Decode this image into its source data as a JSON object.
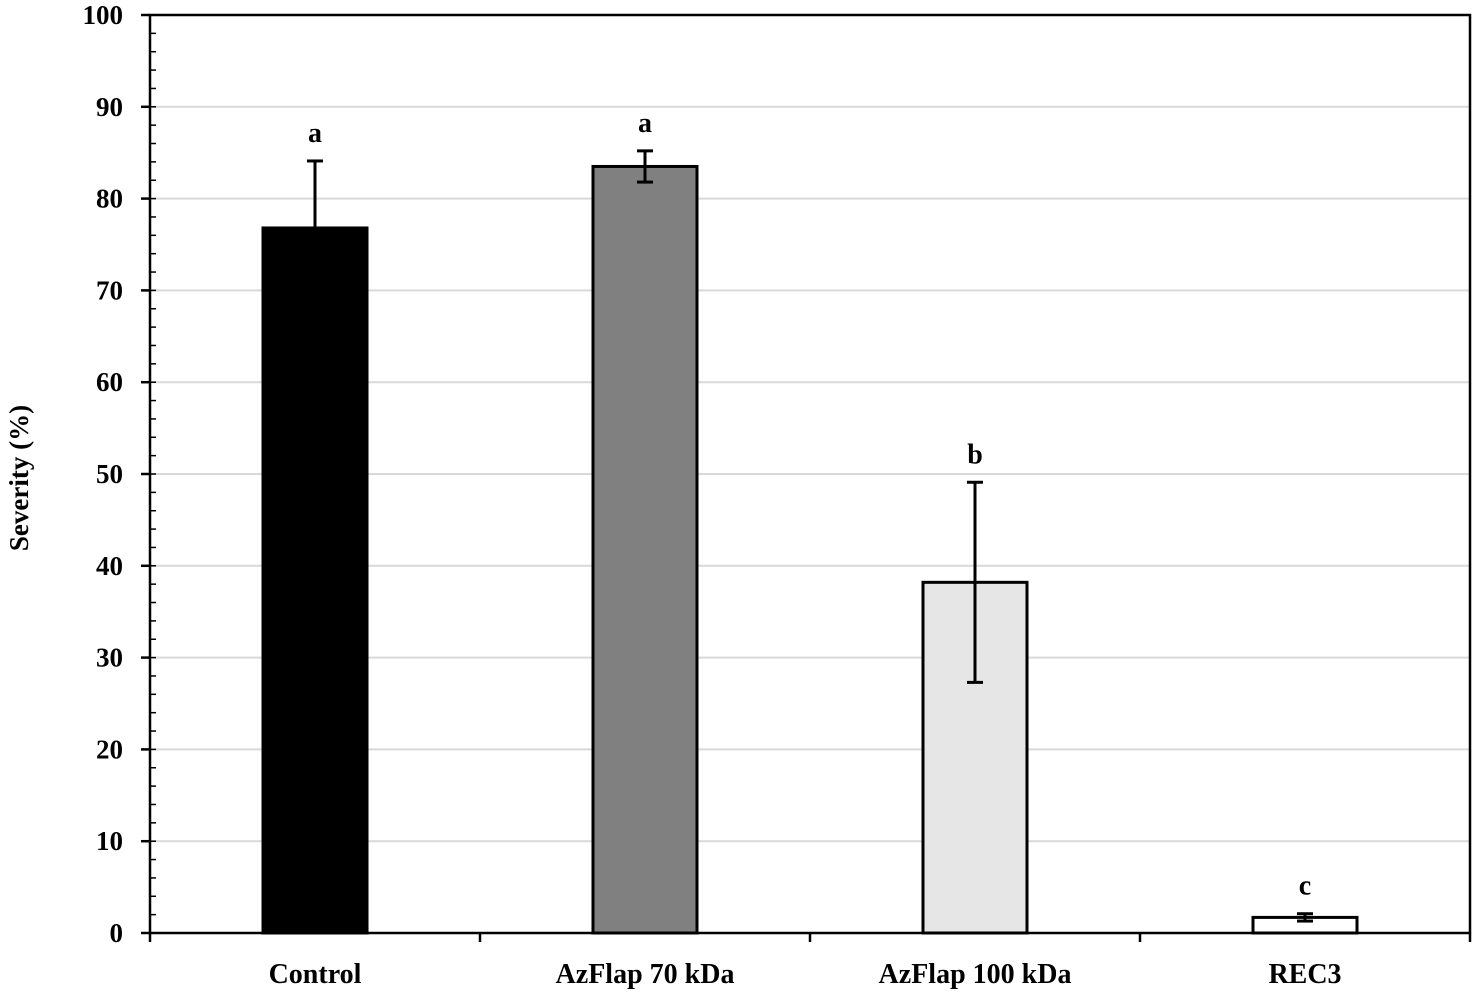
{
  "chart_data": {
    "type": "bar",
    "title": "",
    "xlabel": "",
    "ylabel": "Severity (%)",
    "ylim": [
      0,
      100
    ],
    "yticks": [
      0,
      10,
      20,
      30,
      40,
      50,
      60,
      70,
      80,
      90,
      100
    ],
    "ytick_labels": [
      "0",
      "10",
      "20",
      "30",
      "40",
      "50",
      "60",
      "70",
      "80",
      "90",
      "100"
    ],
    "grid": true,
    "legend": "none",
    "categories": [
      "Control",
      "AzFlap 70 kDa",
      "AzFlap 100 kDa",
      "REC3"
    ],
    "values": [
      76.8,
      83.5,
      38.2,
      1.7
    ],
    "error_bars": [
      7.3,
      1.7,
      10.9,
      0.4
    ],
    "significance_labels": [
      "a",
      "a",
      "b",
      "c"
    ],
    "bar_colors": [
      "#000000",
      "#808080",
      "#e6e6e6",
      "#ffffff"
    ],
    "edge_color": "#000000",
    "grid_color": "#d9d9d9"
  }
}
